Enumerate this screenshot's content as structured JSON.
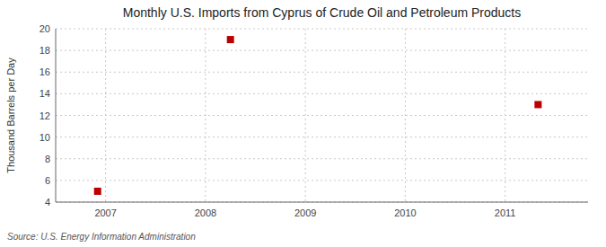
{
  "chart_data": {
    "type": "scatter",
    "title": "Monthly U.S. Imports from Cyprus of Crude Oil and Petroleum Products",
    "ylabel": "Thousand Barrels per Day",
    "annotation": "Source: U.S. Energy Information Administration",
    "x": [
      2006.92,
      2008.25,
      2011.33
    ],
    "values": [
      5.0,
      19.0,
      13.0
    ],
    "color": "#bb0000",
    "marker": "square",
    "xlim": [
      2006.5,
      2011.83
    ],
    "ylim": [
      4,
      20
    ],
    "xticks": [
      2007,
      2008,
      2009,
      2010,
      2011
    ],
    "yticks": [
      4,
      6,
      8,
      10,
      12,
      14,
      16,
      18,
      20
    ],
    "grid": true
  }
}
